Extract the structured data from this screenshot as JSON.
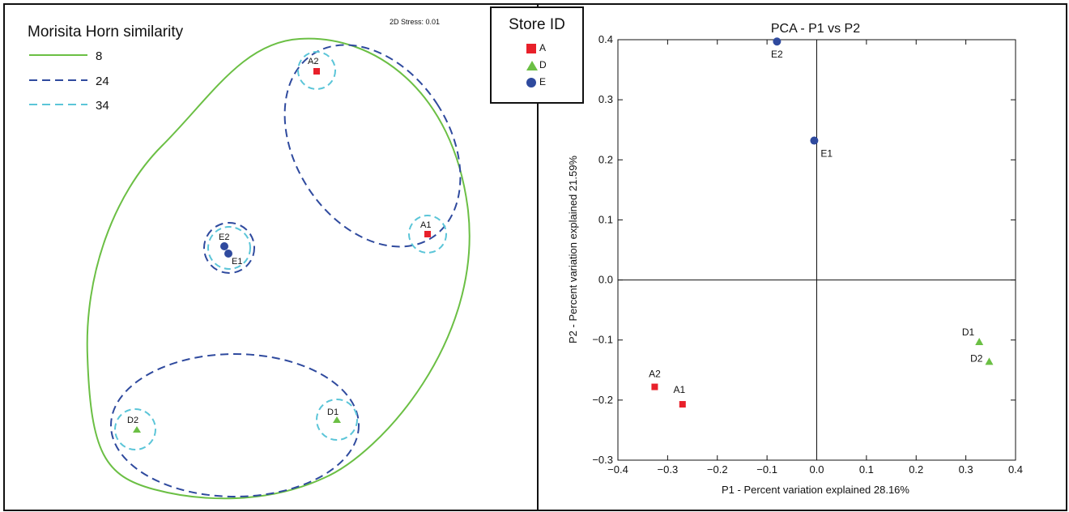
{
  "chart_data": [
    {
      "type": "scatter",
      "title": "Morisita Horn similarity",
      "stress_label": "2D Stress: 0.01",
      "contour_legend": [
        {
          "label": "8",
          "color": "#6bbf44",
          "style": "solid"
        },
        {
          "label": "24",
          "color": "#2f4a9e",
          "style": "dashed"
        },
        {
          "label": "34",
          "color": "#5bc5d8",
          "style": "dashed"
        }
      ],
      "points": [
        {
          "label": "A2",
          "group": "A"
        },
        {
          "label": "A1",
          "group": "A"
        },
        {
          "label": "E2",
          "group": "E"
        },
        {
          "label": "E1",
          "group": "E"
        },
        {
          "label": "D2",
          "group": "D"
        },
        {
          "label": "D1",
          "group": "D"
        }
      ]
    },
    {
      "type": "scatter",
      "title": "PCA - P1 vs P2",
      "xlabel": "P1 - Percent variation explained 28.16%",
      "ylabel": "P2 - Percent variation explained 21.59%",
      "xlim": [
        -0.4,
        0.4
      ],
      "ylim": [
        -0.3,
        0.4
      ],
      "xticks": [
        "−0.4",
        "−0.3",
        "−0.2",
        "−0.1",
        "0.0",
        "0.1",
        "0.2",
        "0.3",
        "0.4"
      ],
      "yticks": [
        "−0.3",
        "−0.2",
        "−0.1",
        "0.0",
        "0.1",
        "0.2",
        "0.3",
        "0.4"
      ],
      "grid": false,
      "points": [
        {
          "label": "E2",
          "group": "E",
          "x": -0.08,
          "y": 0.397
        },
        {
          "label": "E1",
          "group": "E",
          "x": -0.005,
          "y": 0.232
        },
        {
          "label": "D1",
          "group": "D",
          "x": 0.327,
          "y": -0.103
        },
        {
          "label": "D2",
          "group": "D",
          "x": 0.347,
          "y": -0.136
        },
        {
          "label": "A2",
          "group": "A",
          "x": -0.326,
          "y": -0.178
        },
        {
          "label": "A1",
          "group": "A",
          "x": -0.27,
          "y": -0.207
        }
      ]
    }
  ],
  "legend": {
    "title": "Store ID",
    "items": [
      {
        "label": "A",
        "shape": "square",
        "color": "#e8202a"
      },
      {
        "label": "D",
        "shape": "triangle",
        "color": "#6bbf44"
      },
      {
        "label": "E",
        "shape": "circle",
        "color": "#2f4a9e"
      }
    ]
  }
}
